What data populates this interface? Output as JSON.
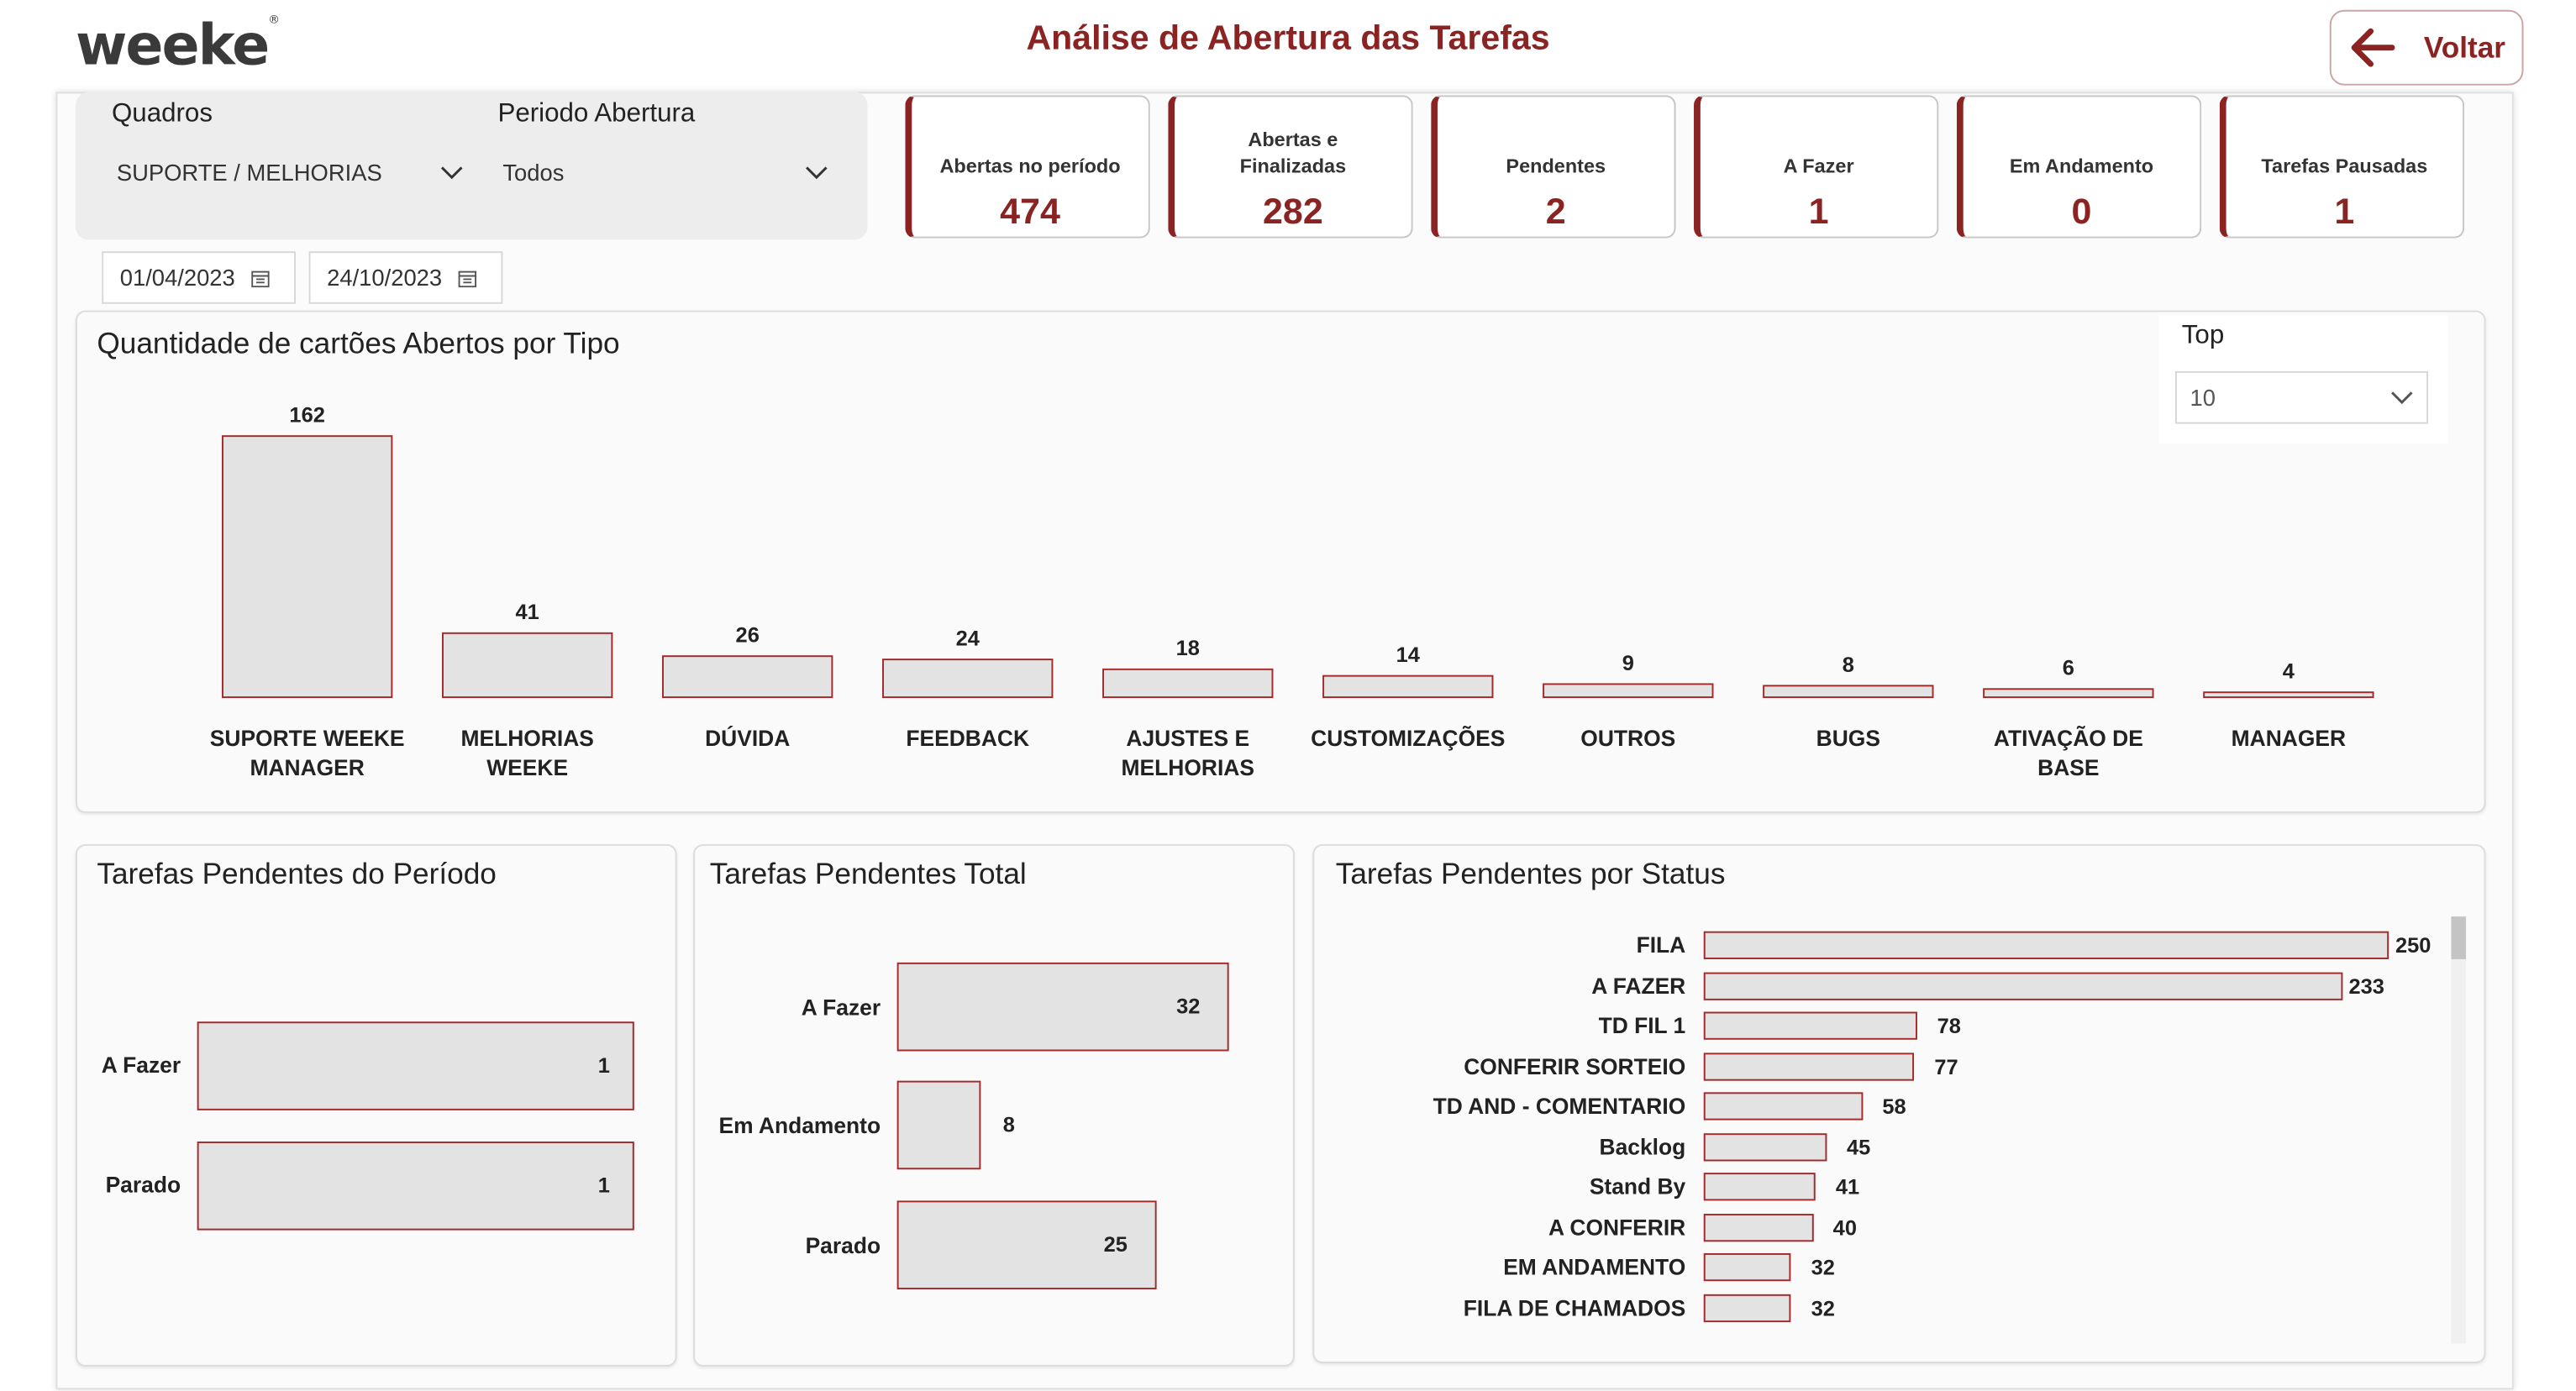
{
  "header": {
    "logo_text": "weeke",
    "logo_reg": "®",
    "title": "Análise de Abertura das Tarefas",
    "back_label": "Voltar"
  },
  "filters": {
    "quadros_label": "Quadros",
    "quadros_value": "SUPORTE / MELHORIAS",
    "periodo_label": "Periodo Abertura",
    "periodo_value": "Todos",
    "date_start": "01/04/2023",
    "date_end": "24/10/2023"
  },
  "kpis": [
    {
      "label": "Abertas no período",
      "value": "474"
    },
    {
      "label": "Abertas e Finalizadas",
      "value": "282"
    },
    {
      "label": "Pendentes",
      "value": "2"
    },
    {
      "label": "A Fazer",
      "value": "1"
    },
    {
      "label": "Em Andamento",
      "value": "0"
    },
    {
      "label": "Tarefas Pausadas",
      "value": "1"
    }
  ],
  "top_filter": {
    "label": "Top",
    "value": "10"
  },
  "colors": {
    "accent": "#8b2323",
    "bar_fill": "#e4e3e4",
    "bar_stroke": "#a32b2b"
  },
  "chart_data": [
    {
      "type": "bar",
      "title": "Quantidade de cartões Abertos por Tipo",
      "categories": [
        "SUPORTE WEEKE MANAGER",
        "MELHORIAS WEEKE",
        "DÚVIDA",
        "FEEDBACK",
        "AJUSTES E MELHORIAS",
        "CUSTOMIZAÇÕES",
        "OUTROS",
        "BUGS",
        "ATIVAÇÃO DE BASE",
        "MANAGER"
      ],
      "category_lines": [
        [
          "SUPORTE WEEKE",
          "MANAGER"
        ],
        [
          "MELHORIAS",
          "WEEKE"
        ],
        [
          "DÚVIDA"
        ],
        [
          "FEEDBACK"
        ],
        [
          "AJUSTES E",
          "MELHORIAS"
        ],
        [
          "CUSTOMIZAÇÕES"
        ],
        [
          "OUTROS"
        ],
        [
          "BUGS"
        ],
        [
          "ATIVAÇÃO DE",
          "BASE"
        ],
        [
          "MANAGER"
        ]
      ],
      "values": [
        162,
        41,
        26,
        24,
        18,
        14,
        9,
        8,
        6,
        4
      ]
    },
    {
      "type": "bar",
      "orientation": "horizontal",
      "title": "Tarefas Pendentes do Período",
      "categories": [
        "A Fazer",
        "Parado"
      ],
      "values": [
        1,
        1
      ]
    },
    {
      "type": "bar",
      "orientation": "horizontal",
      "title": "Tarefas Pendentes Total",
      "categories": [
        "A Fazer",
        "Em Andamento",
        "Parado"
      ],
      "values": [
        32,
        8,
        25
      ]
    },
    {
      "type": "bar",
      "orientation": "horizontal",
      "title": "Tarefas Pendentes por Status",
      "categories": [
        "FILA",
        "A FAZER",
        "TD FIL 1",
        "CONFERIR SORTEIO",
        "TD AND - COMENTARIO",
        "Backlog",
        "Stand By",
        "A CONFERIR",
        "EM ANDAMENTO",
        "FILA DE CHAMADOS"
      ],
      "values": [
        250,
        233,
        78,
        77,
        58,
        45,
        41,
        40,
        32,
        32
      ]
    }
  ]
}
